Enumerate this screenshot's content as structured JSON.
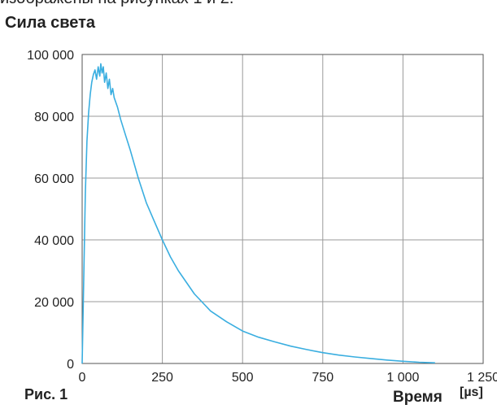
{
  "page": {
    "top_text_fragment": "изображены на рисунках 1 и 2."
  },
  "chart_data": {
    "type": "line",
    "title": "Сила света",
    "figure_label": "Рис. 1",
    "xlabel": "Время",
    "xunit": "[µs]",
    "ylabel": "",
    "xlim": [
      0,
      1250
    ],
    "ylim": [
      0,
      100000
    ],
    "x_ticks": [
      0,
      250,
      500,
      750,
      1000,
      1250
    ],
    "x_tick_labels": [
      "0",
      "250",
      "500",
      "750",
      "1 000",
      "1 250"
    ],
    "y_ticks": [
      0,
      20000,
      40000,
      60000,
      80000,
      100000
    ],
    "y_tick_labels": [
      "0",
      "20 000",
      "40 000",
      "60 000",
      "80 000",
      "100 000"
    ],
    "grid": true,
    "line_color": "#3aaee0",
    "series": [
      {
        "x": [
          0,
          5,
          10,
          15,
          20,
          25,
          30,
          35,
          40,
          45,
          50,
          55,
          58,
          62,
          66,
          70,
          75,
          80,
          85,
          90,
          95,
          100,
          110,
          120,
          135,
          150,
          175,
          200,
          225,
          250,
          275,
          300,
          350,
          400,
          450,
          500,
          550,
          600,
          650,
          700,
          750,
          800,
          850,
          900,
          950,
          1000,
          1050,
          1100
        ],
        "y": [
          0,
          28000,
          55000,
          72000,
          81000,
          87000,
          91000,
          93500,
          95000,
          92000,
          96000,
          93000,
          97000,
          94000,
          96000,
          91000,
          94000,
          89000,
          92000,
          87000,
          89000,
          86000,
          83000,
          79000,
          74000,
          69000,
          60000,
          52000,
          46000,
          40000,
          34500,
          30000,
          22500,
          17000,
          13500,
          10500,
          8500,
          7000,
          5600,
          4500,
          3500,
          2700,
          2100,
          1600,
          1100,
          700,
          400,
          200
        ]
      }
    ]
  }
}
